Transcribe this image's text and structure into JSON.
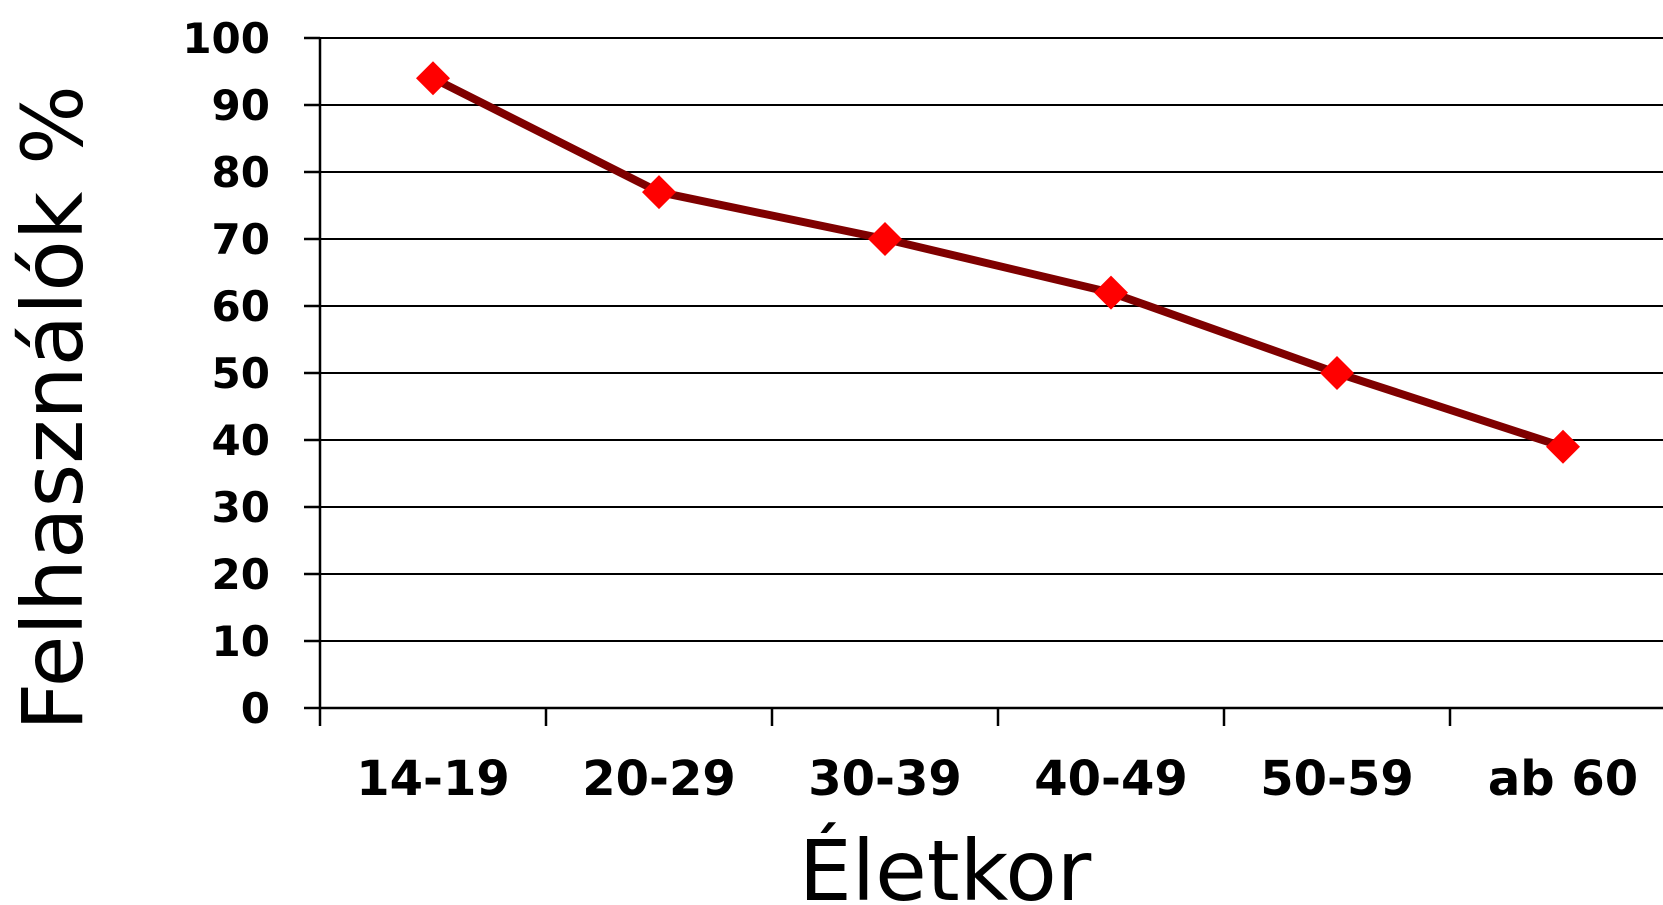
{
  "chart_data": {
    "type": "line",
    "title": "",
    "xlabel": "Életkor",
    "ylabel": "Felhasználók %",
    "categories": [
      "14-19",
      "20-29",
      "30-39",
      "40-49",
      "50-59",
      "ab 60"
    ],
    "series": [
      {
        "values": [
          94,
          77,
          70,
          62,
          50,
          39
        ]
      }
    ],
    "ylim": [
      0,
      100
    ],
    "yticks": [
      "0",
      "10",
      "20",
      "30",
      "40",
      "50",
      "60",
      "70",
      "80",
      "90",
      "100"
    ],
    "grid": true,
    "colors": {
      "line": "#7f0000",
      "marker": "#ff0000"
    }
  }
}
